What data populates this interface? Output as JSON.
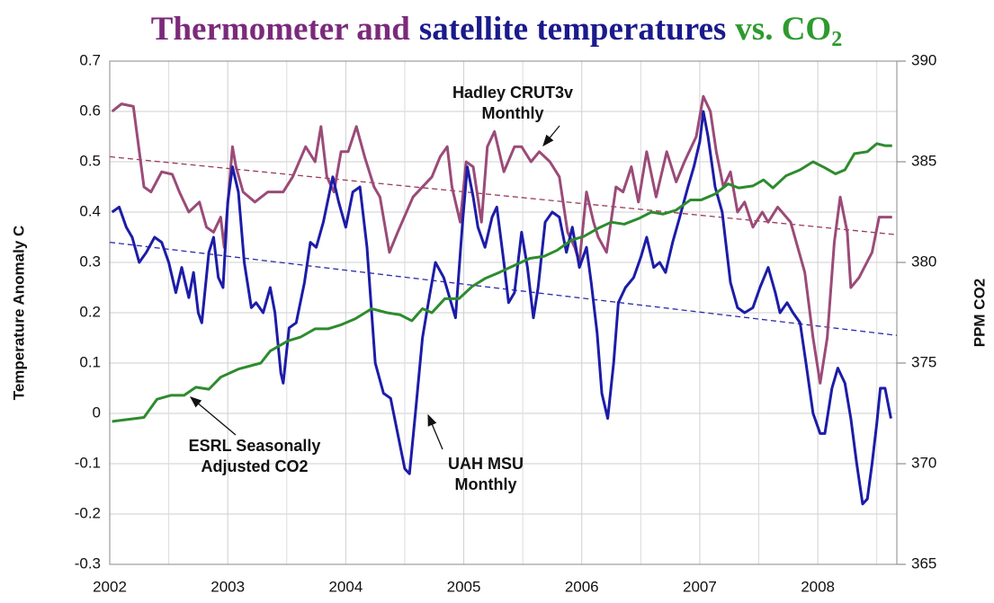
{
  "chart_data": {
    "type": "line",
    "title": [
      {
        "text": "Thermometer and",
        "color": "#7b2a7b"
      },
      {
        "text": "satellite temperatures",
        "color": "#1a1a8c"
      },
      {
        "text": "vs. CO",
        "color": "#2e9a2e"
      },
      {
        "text": "2",
        "color": "#2e9a2e",
        "sub": true
      }
    ],
    "y_label": "Temperature Anomaly C",
    "y2_label": "PPM CO2",
    "xlim": [
      2002,
      2008.67
    ],
    "xticks": [
      2002,
      2003,
      2004,
      2005,
      2006,
      2007,
      2008
    ],
    "x_minor_ticks": [
      2002.5,
      2003.5,
      2004.5,
      2005.5,
      2006.5,
      2007.5,
      2008.5
    ],
    "ylim": [
      -0.3,
      0.7
    ],
    "yticks": [
      -0.3,
      -0.2,
      -0.1,
      0,
      0.1,
      0.2,
      0.3,
      0.4,
      0.5,
      0.6,
      0.7
    ],
    "y2lim": [
      365,
      390
    ],
    "y2ticks": [
      365,
      370,
      375,
      380,
      385,
      390
    ],
    "grid": true,
    "series": [
      {
        "label": [
          "Hadley CRUT3v",
          "Monthly"
        ],
        "color": "#9a4b78",
        "x": [
          2002.02,
          2002.1,
          2002.2,
          2002.29,
          2002.35,
          2002.44,
          2002.53,
          2002.59,
          2002.67,
          2002.76,
          2002.82,
          2002.88,
          2002.94,
          2002.97,
          2003.04,
          2003.07,
          2003.13,
          2003.23,
          2003.34,
          2003.47,
          2003.55,
          2003.66,
          2003.74,
          2003.79,
          2003.84,
          2003.9,
          2003.96,
          2004.02,
          2004.09,
          2004.16,
          2004.24,
          2004.29,
          2004.37,
          2004.44,
          2004.57,
          2004.73,
          2004.8,
          2004.86,
          2004.9,
          2004.97,
          2005.02,
          2005.08,
          2005.15,
          2005.2,
          2005.26,
          2005.34,
          2005.43,
          2005.49,
          2005.57,
          2005.64,
          2005.73,
          2005.81,
          2005.88,
          2005.94,
          2005.98,
          2006.04,
          2006.1,
          2006.14,
          2006.21,
          2006.29,
          2006.35,
          2006.42,
          2006.48,
          2006.55,
          2006.63,
          2006.72,
          2006.8,
          2006.87,
          2006.97,
          2007.03,
          2007.09,
          2007.14,
          2007.2,
          2007.26,
          2007.32,
          2007.38,
          2007.45,
          2007.53,
          2007.58,
          2007.66,
          2007.77,
          2007.89,
          2007.96,
          2008.02,
          2008.08,
          2008.14,
          2008.19,
          2008.25,
          2008.28,
          2008.35,
          2008.46,
          2008.52,
          2008.63
        ],
        "values": [
          0.6,
          0.615,
          0.61,
          0.45,
          0.44,
          0.48,
          0.475,
          0.44,
          0.4,
          0.42,
          0.37,
          0.36,
          0.39,
          0.33,
          0.53,
          0.49,
          0.44,
          0.42,
          0.44,
          0.44,
          0.47,
          0.53,
          0.5,
          0.57,
          0.47,
          0.44,
          0.52,
          0.52,
          0.57,
          0.51,
          0.45,
          0.43,
          0.32,
          0.36,
          0.43,
          0.47,
          0.51,
          0.53,
          0.45,
          0.38,
          0.5,
          0.49,
          0.38,
          0.53,
          0.56,
          0.48,
          0.53,
          0.53,
          0.5,
          0.52,
          0.5,
          0.47,
          0.36,
          0.33,
          0.3,
          0.44,
          0.38,
          0.35,
          0.32,
          0.45,
          0.44,
          0.49,
          0.42,
          0.52,
          0.43,
          0.52,
          0.46,
          0.5,
          0.55,
          0.63,
          0.6,
          0.52,
          0.45,
          0.48,
          0.4,
          0.42,
          0.37,
          0.4,
          0.38,
          0.41,
          0.38,
          0.28,
          0.15,
          0.06,
          0.15,
          0.34,
          0.43,
          0.36,
          0.25,
          0.27,
          0.32,
          0.39,
          0.39
        ]
      },
      {
        "label": [
          "UAH MSU",
          "Monthly"
        ],
        "color": "#1c1ca8",
        "x": [
          2002.02,
          2002.08,
          2002.14,
          2002.19,
          2002.25,
          2002.31,
          2002.38,
          2002.44,
          2002.5,
          2002.56,
          2002.61,
          2002.67,
          2002.71,
          2002.75,
          2002.78,
          2002.84,
          2002.88,
          2002.92,
          2002.96,
          2003.0,
          2003.04,
          2003.09,
          2003.14,
          2003.2,
          2003.24,
          2003.3,
          2003.36,
          2003.4,
          2003.45,
          2003.47,
          2003.52,
          2003.58,
          2003.65,
          2003.7,
          2003.75,
          2003.81,
          2003.89,
          2003.94,
          2004.0,
          2004.06,
          2004.12,
          2004.18,
          2004.25,
          2004.32,
          2004.38,
          2004.44,
          2004.5,
          2004.54,
          2004.59,
          2004.65,
          2004.7,
          2004.76,
          2004.83,
          2004.88,
          2004.93,
          2004.99,
          2005.03,
          2005.08,
          2005.12,
          2005.18,
          2005.24,
          2005.28,
          2005.34,
          2005.38,
          2005.43,
          2005.49,
          2005.54,
          2005.59,
          2005.63,
          2005.69,
          2005.75,
          2005.81,
          2005.87,
          2005.92,
          2005.98,
          2006.04,
          2006.08,
          2006.13,
          2006.17,
          2006.22,
          2006.27,
          2006.31,
          2006.37,
          2006.44,
          2006.5,
          2006.55,
          2006.61,
          2006.66,
          2006.71,
          2006.77,
          2006.83,
          2006.9,
          2006.95,
          2007.0,
          2007.03,
          2007.07,
          2007.13,
          2007.19,
          2007.26,
          2007.32,
          2007.38,
          2007.45,
          2007.51,
          2007.58,
          2007.64,
          2007.68,
          2007.74,
          2007.79,
          2007.85,
          2007.9,
          2007.96,
          2008.02,
          2008.06,
          2008.12,
          2008.17,
          2008.23,
          2008.28,
          2008.33,
          2008.38,
          2008.42,
          2008.46,
          2008.5,
          2008.53,
          2008.57,
          2008.62
        ],
        "values": [
          0.4,
          0.41,
          0.37,
          0.35,
          0.3,
          0.32,
          0.35,
          0.34,
          0.3,
          0.24,
          0.29,
          0.23,
          0.28,
          0.2,
          0.18,
          0.32,
          0.35,
          0.27,
          0.25,
          0.42,
          0.49,
          0.44,
          0.3,
          0.21,
          0.22,
          0.2,
          0.25,
          0.2,
          0.08,
          0.06,
          0.17,
          0.18,
          0.26,
          0.34,
          0.33,
          0.38,
          0.47,
          0.42,
          0.37,
          0.44,
          0.45,
          0.33,
          0.1,
          0.04,
          0.03,
          -0.04,
          -0.11,
          -0.12,
          0.0,
          0.15,
          0.22,
          0.3,
          0.27,
          0.23,
          0.19,
          0.38,
          0.49,
          0.43,
          0.37,
          0.33,
          0.39,
          0.41,
          0.3,
          0.22,
          0.24,
          0.36,
          0.29,
          0.19,
          0.25,
          0.38,
          0.4,
          0.39,
          0.32,
          0.37,
          0.29,
          0.33,
          0.26,
          0.16,
          0.04,
          -0.01,
          0.1,
          0.22,
          0.25,
          0.27,
          0.31,
          0.35,
          0.29,
          0.3,
          0.28,
          0.34,
          0.39,
          0.45,
          0.49,
          0.54,
          0.6,
          0.55,
          0.45,
          0.4,
          0.26,
          0.21,
          0.2,
          0.21,
          0.25,
          0.29,
          0.24,
          0.2,
          0.22,
          0.2,
          0.18,
          0.1,
          0.0,
          -0.04,
          -0.04,
          0.05,
          0.09,
          0.06,
          -0.01,
          -0.1,
          -0.18,
          -0.17,
          -0.1,
          -0.02,
          0.05,
          0.05,
          -0.01
        ]
      },
      {
        "label": [
          "ESRL Seasonally",
          "Adjusted CO2"
        ],
        "color": "#2e8b2e",
        "axis": "y2",
        "x": [
          2002.02,
          2002.29,
          2002.4,
          2002.52,
          2002.63,
          2002.73,
          2002.84,
          2002.94,
          2003.09,
          2003.28,
          2003.36,
          2003.51,
          2003.62,
          2003.74,
          2003.85,
          2003.96,
          2004.08,
          2004.22,
          2004.35,
          2004.46,
          2004.56,
          2004.65,
          2004.73,
          2004.84,
          2004.96,
          2005.07,
          2005.18,
          2005.3,
          2005.41,
          2005.56,
          2005.68,
          2005.79,
          2005.91,
          2006.02,
          2006.14,
          2006.25,
          2006.36,
          2006.49,
          2006.59,
          2006.69,
          2006.8,
          2006.92,
          2007.01,
          2007.13,
          2007.24,
          2007.33,
          2007.45,
          2007.54,
          2007.62,
          2007.73,
          2007.85,
          2007.96,
          2008.06,
          2008.15,
          2008.23,
          2008.31,
          2008.42,
          2008.5,
          2008.57,
          2008.63
        ],
        "values": [
          372.1,
          372.3,
          373.2,
          373.4,
          373.4,
          373.8,
          373.7,
          374.3,
          374.7,
          375.0,
          375.6,
          376.1,
          376.3,
          376.7,
          376.7,
          376.9,
          377.2,
          377.7,
          377.5,
          377.4,
          377.1,
          377.7,
          377.5,
          378.2,
          378.2,
          378.8,
          379.2,
          379.5,
          379.8,
          380.2,
          380.3,
          380.6,
          381.1,
          381.3,
          381.7,
          382.0,
          381.9,
          382.2,
          382.5,
          382.4,
          382.6,
          383.1,
          383.1,
          383.4,
          383.9,
          383.7,
          383.8,
          384.1,
          383.7,
          384.3,
          384.6,
          385.0,
          384.7,
          384.4,
          384.6,
          385.4,
          385.5,
          385.9,
          385.8,
          385.8
        ]
      }
    ],
    "trend_lines": [
      {
        "x": [
          2002,
          2008.67
        ],
        "values": [
          0.51,
          0.355
        ],
        "color": "#9a3a5a"
      },
      {
        "x": [
          2002,
          2008.67
        ],
        "values": [
          0.34,
          0.155
        ],
        "color": "#2a2aa8"
      }
    ]
  }
}
